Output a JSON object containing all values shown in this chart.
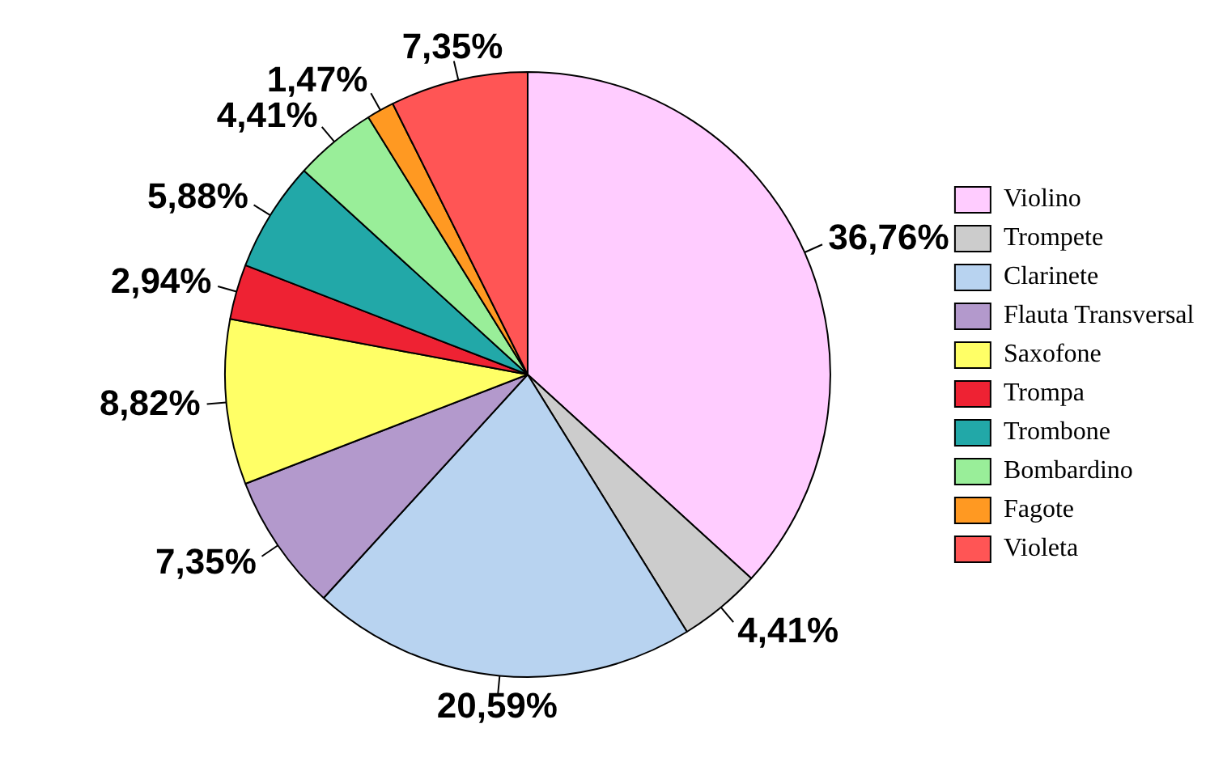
{
  "chart_data": {
    "type": "pie",
    "categories": [
      "Violino",
      "Trompete",
      "Clarinete",
      "Flauta Transversal",
      "Saxofone",
      "Trompa",
      "Trombone",
      "Bombardino",
      "Fagote",
      "Violeta"
    ],
    "values": [
      36.76,
      4.41,
      20.59,
      7.35,
      8.82,
      2.94,
      5.88,
      4.41,
      1.47,
      7.35
    ],
    "value_labels": [
      "36,76%",
      "4,41%",
      "20,59%",
      "7,35%",
      "8,82%",
      "2,94%",
      "5,88%",
      "4,41%",
      "1,47%",
      "7,35%"
    ],
    "colors": [
      "#ffccff",
      "#cccccc",
      "#b8d3f0",
      "#b399cc",
      "#ffff66",
      "#ee2233",
      "#22a8a8",
      "#99ee99",
      "#ff9922",
      "#ff5555"
    ],
    "legend": "right"
  }
}
